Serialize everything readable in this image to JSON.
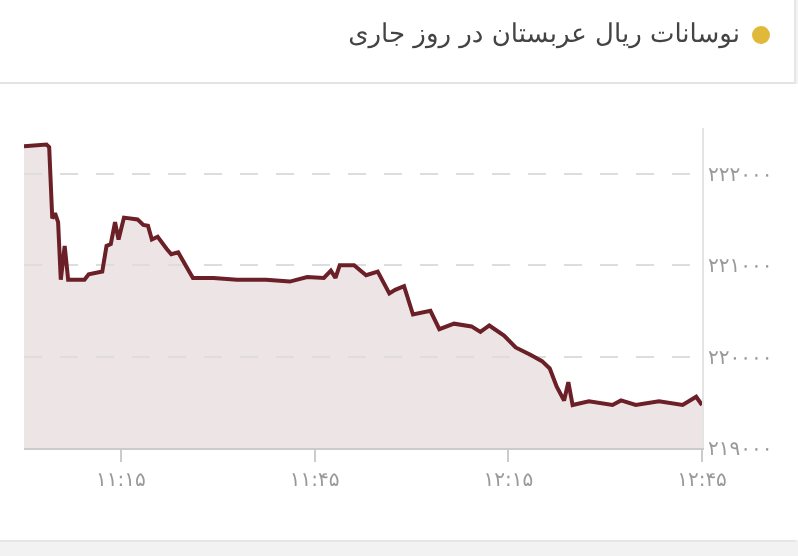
{
  "chart_data": {
    "type": "area",
    "title": "نوسانات ریال عربستان در روز جاری",
    "x": [
      11.0,
      11.058,
      11.065,
      11.073,
      11.08,
      11.088,
      11.095,
      11.105,
      11.114,
      11.156,
      11.167,
      11.202,
      11.213,
      11.224,
      11.235,
      11.244,
      11.258,
      11.293,
      11.308,
      11.32,
      11.33,
      11.345,
      11.368,
      11.38,
      11.398,
      11.417,
      11.436,
      11.489,
      11.55,
      11.625,
      11.686,
      11.731,
      11.774,
      11.792,
      11.804,
      11.815,
      11.852,
      11.883,
      11.913,
      11.943,
      11.958,
      11.981,
      12.004,
      12.049,
      12.072,
      12.11,
      12.155,
      12.178,
      12.201,
      12.239,
      12.269,
      12.307,
      12.337,
      12.357,
      12.375,
      12.394,
      12.405,
      12.416,
      12.458,
      12.519,
      12.541,
      12.579,
      12.639,
      12.7,
      12.735,
      12.75
    ],
    "series": [
      {
        "color": "#6b1f27",
        "values": [
          222300,
          222320,
          222290,
          221510,
          221570,
          221470,
          220840,
          221210,
          220840,
          220840,
          220900,
          220930,
          221210,
          221230,
          221470,
          221280,
          221520,
          221500,
          221440,
          221430,
          221280,
          221310,
          221180,
          221120,
          221140,
          221000,
          220860,
          220860,
          220840,
          220840,
          220820,
          220870,
          220860,
          220940,
          220860,
          221000,
          221000,
          220890,
          220930,
          220690,
          220730,
          220770,
          220460,
          220500,
          220300,
          220360,
          220330,
          220270,
          220340,
          220230,
          220100,
          220020,
          219950,
          219870,
          219670,
          219520,
          219720,
          219470,
          219510,
          219470,
          219520,
          219470,
          219510,
          219470,
          219560,
          219470
        ]
      }
    ],
    "xlim": [
      11.0,
      12.75
    ],
    "xticks": [
      {
        "value": 11.25,
        "label": "۱۱:۱۵"
      },
      {
        "value": 11.75,
        "label": "۱۱:۴۵"
      },
      {
        "value": 12.25,
        "label": "۱۲:۱۵"
      },
      {
        "value": 12.75,
        "label": "۱۲:۴۵"
      }
    ],
    "ylim": [
      219000,
      222500
    ],
    "yticks": [
      {
        "value": 219000,
        "label": "۲۱۹۰۰۰"
      },
      {
        "value": 220000,
        "label": "۲۲۰۰۰۰"
      },
      {
        "value": 221000,
        "label": "۲۲۱۰۰۰"
      },
      {
        "value": 222000,
        "label": "۲۲۲۰۰۰"
      }
    ],
    "grid": "y",
    "marker": "none",
    "line_style": "solid"
  }
}
